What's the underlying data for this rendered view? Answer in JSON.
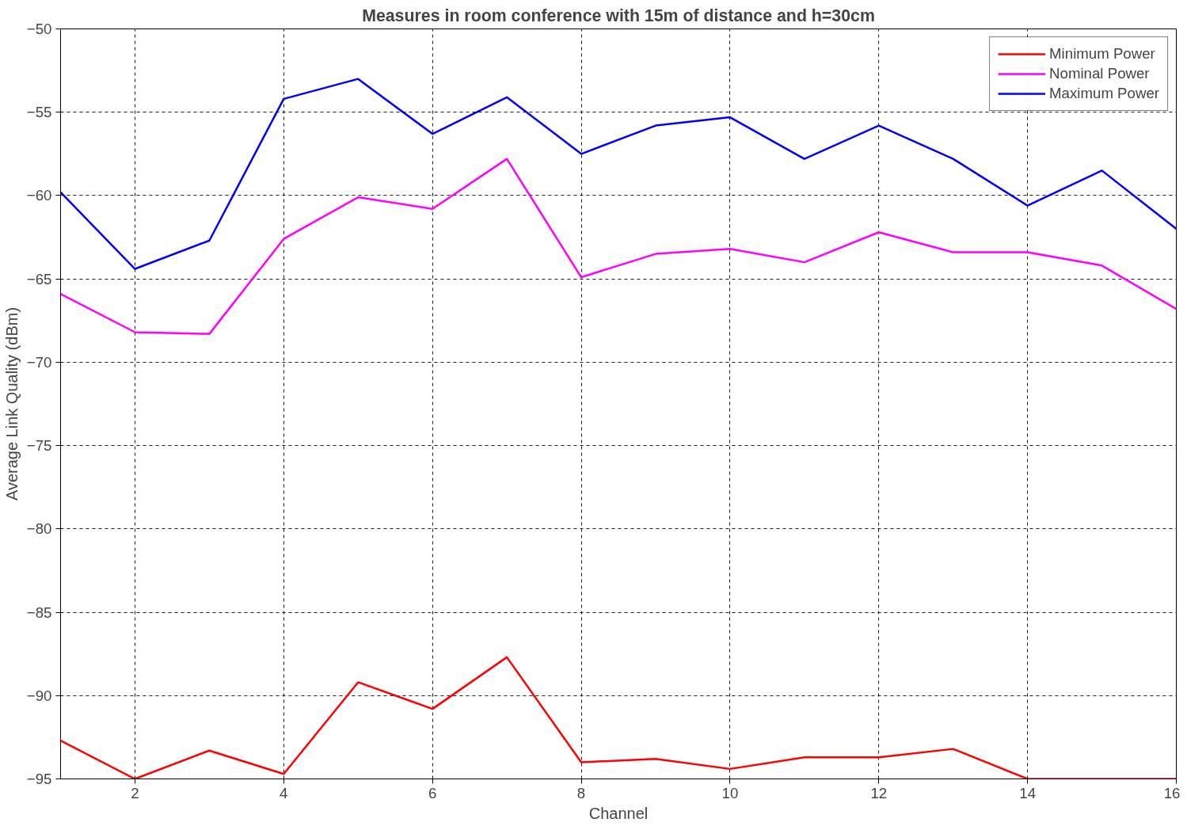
{
  "chart_data": {
    "type": "line",
    "title": "Measures in room conference with 15m of distance and h=30cm",
    "xlabel": "Channel",
    "ylabel": "Average Link Quality (dBm)",
    "x": [
      1,
      2,
      3,
      4,
      5,
      6,
      7,
      8,
      9,
      10,
      11,
      12,
      13,
      14,
      15,
      16
    ],
    "series": [
      {
        "name": "Minimum Power",
        "color": "#ff0000",
        "values": [
          -92.7,
          -95.0,
          -93.3,
          -94.7,
          -89.2,
          -90.8,
          -87.7,
          -94.0,
          -93.8,
          -94.4,
          -93.7,
          -93.7,
          -93.2,
          -95.0,
          -95.0,
          -95.0
        ]
      },
      {
        "name": "Nominal Power",
        "color": "#ff00ff",
        "values": [
          -65.9,
          -68.2,
          -68.3,
          -62.6,
          -60.1,
          -60.8,
          -57.8,
          -64.9,
          -63.5,
          -63.2,
          -64.0,
          -62.2,
          -63.4,
          -63.4,
          -64.2,
          -66.8
        ]
      },
      {
        "name": "Maximum Power",
        "color": "#0000ff",
        "values": [
          -59.8,
          -64.4,
          -62.7,
          -54.2,
          -53.0,
          -56.3,
          -54.1,
          -57.5,
          -55.8,
          -55.3,
          -57.8,
          -55.8,
          -57.8,
          -60.6,
          -58.5,
          -62.0
        ]
      }
    ],
    "xlim": [
      1,
      16
    ],
    "ylim": [
      -95,
      -50
    ],
    "xticks": [
      2,
      4,
      6,
      8,
      10,
      12,
      14,
      16
    ],
    "yticks": [
      -95,
      -90,
      -85,
      -80,
      -75,
      -70,
      -65,
      -60,
      -55,
      -50
    ],
    "grid": true,
    "legend": "top right",
    "marker": "none",
    "line_style": "solid"
  }
}
